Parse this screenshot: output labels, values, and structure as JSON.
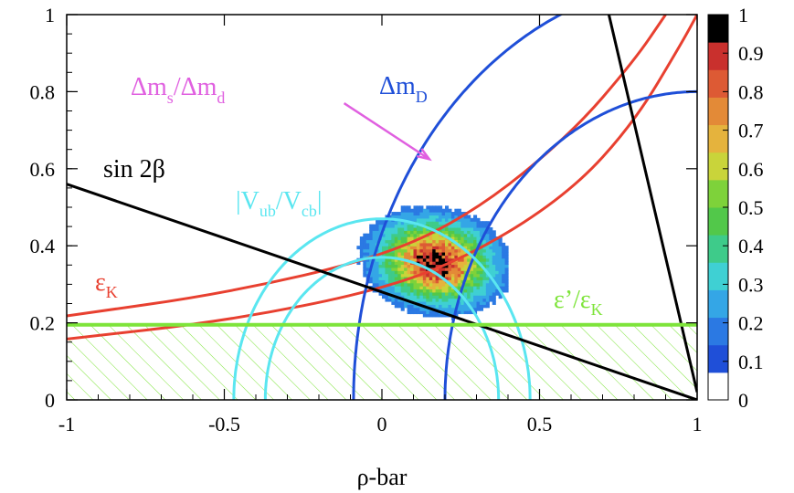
{
  "chart_data": {
    "type": "heatmap",
    "title": "",
    "xlabel": "ρ-bar",
    "ylabel": "",
    "xlim": [
      -1,
      1
    ],
    "ylim": [
      0,
      1
    ],
    "x_ticks": [
      -1,
      -0.5,
      0,
      0.5,
      1
    ],
    "x_tick_labels": [
      "-1",
      "-0.5",
      "0",
      "0.5",
      "1"
    ],
    "y_ticks": [
      0,
      0.2,
      0.4,
      0.6,
      0.8,
      1
    ],
    "y_tick_labels": [
      "0",
      "0.2",
      "0.4",
      "0.6",
      "0.8",
      "1"
    ],
    "colorbar": {
      "range": [
        0,
        1
      ],
      "tick_labels": [
        "0",
        "0.1",
        "0.2",
        "0.3",
        "0.4",
        "0.5",
        "0.6",
        "0.7",
        "0.8",
        "0.9",
        "1"
      ],
      "colors": [
        "#ffffff",
        "#1f4fd8",
        "#2b79e3",
        "#34a6e6",
        "#3fd0d3",
        "#3ecb8a",
        "#52c84a",
        "#7ed23a",
        "#c9d43a",
        "#e5b33d",
        "#e38a37",
        "#dd5a34",
        "#c9302d",
        "#000000"
      ]
    },
    "colors": {
      "epsilon_K": "#e84030",
      "delta_m_D": "#1f4fd8",
      "sin2beta": "#000000",
      "vub_vcb": "#5ae6f0",
      "eps_prime": "#7ee43a",
      "delta_ms": "#e060e0"
    },
    "heatmap": {
      "center": [
        0.165,
        0.355
      ],
      "spread": [
        0.12,
        0.075
      ],
      "peak_value": 1.0,
      "cutoff": 0.08,
      "bounds": {
        "x": [
          -0.1,
          0.4
        ],
        "y": [
          0.2,
          0.5
        ]
      }
    },
    "constraints": [
      {
        "name": "eps_K_band",
        "label": "ε",
        "sub": "K",
        "type": "hyperbola",
        "points_lower": [
          [
            -1,
            0.158
          ],
          [
            -0.5,
            0.204
          ],
          [
            0,
            0.285
          ],
          [
            0.3,
            0.382
          ],
          [
            0.6,
            0.54
          ],
          [
            0.8,
            0.72
          ],
          [
            0.95,
            0.925
          ],
          [
            1.0,
            1.0
          ]
        ],
        "points_upper": [
          [
            -1,
            0.218
          ],
          [
            -0.5,
            0.276
          ],
          [
            0,
            0.37
          ],
          [
            0.3,
            0.49
          ],
          [
            0.6,
            0.69
          ],
          [
            0.8,
            0.88
          ],
          [
            0.9,
            1.0
          ]
        ]
      },
      {
        "name": "delta_m_D_circles",
        "label": "Δm",
        "sub": "D",
        "circles": [
          {
            "cx": 1.0,
            "cy": 0.0,
            "r": 1.09,
            "theta_deg_range": [
              90,
              180
            ]
          },
          {
            "cx": 1.0,
            "cy": 0.0,
            "r": 0.8,
            "theta_deg_range": [
              90,
              180
            ]
          }
        ]
      },
      {
        "name": "vub_vcb_circles",
        "label": "|V",
        "sub1": "ub",
        "mid": "/V",
        "sub2": "cb",
        "end": "|",
        "circles": [
          {
            "cx": 0.0,
            "cy": 0.0,
            "r": 0.47
          },
          {
            "cx": 0.0,
            "cy": 0.0,
            "r": 0.37
          }
        ]
      },
      {
        "name": "sin2beta_lines",
        "label": "sin 2β",
        "lines": [
          [
            [
              -1,
              0.56
            ],
            [
              1,
              0
            ]
          ],
          [
            [
              0.72,
              1.0
            ],
            [
              1.0,
              0.02
            ]
          ]
        ]
      },
      {
        "name": "eps_prime_line",
        "label": "ε’/ε",
        "sub": "K",
        "y": 0.195
      },
      {
        "name": "delta_ms_arrow",
        "label_1": "Δm",
        "sub_1": "s",
        "label_2": "/Δm",
        "sub_2": "d",
        "arrow_from": [
          -0.12,
          0.77
        ],
        "arrow_to": [
          0.15,
          0.625
        ]
      }
    ]
  }
}
